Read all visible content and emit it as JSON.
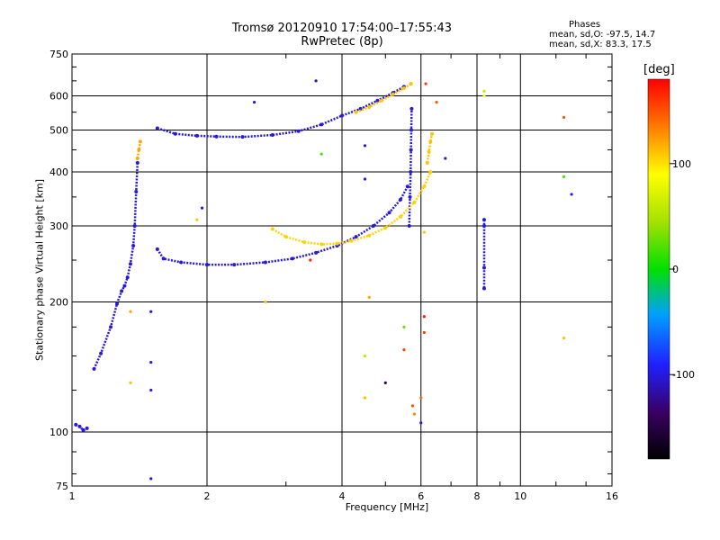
{
  "header": {
    "title_line1": "Tromsø 20120910 17:54:00–17:55:43",
    "title_line2": "RwPretec (8p)"
  },
  "phases_box": {
    "heading": "Phases",
    "line_o": "mean, sd,O: -97.5, 14.7",
    "line_x": "mean, sd,X:  83.3, 17.5"
  },
  "colorbar": {
    "unit_label": "[deg]",
    "range": [
      -180,
      180
    ],
    "ticks": [
      100,
      0,
      -100
    ],
    "tick_labels": [
      "100",
      "0",
      "-100"
    ]
  },
  "chart_data": {
    "type": "scatter",
    "title": "Tromsø 20120910 17:54:00–17:55:43",
    "subtitle": "RwPretec (8p)",
    "xlabel": "Frequency [MHz]",
    "ylabel": "Stationary phase Virtual Height [km]",
    "x_scale": "log",
    "y_scale": "log",
    "xlim": [
      1,
      16
    ],
    "ylim": [
      75,
      750
    ],
    "x_ticks": [
      1,
      2,
      4,
      6,
      8,
      10,
      16
    ],
    "x_tick_labels": [
      "1",
      "2",
      "4",
      "6",
      "8",
      "10",
      "16"
    ],
    "y_ticks": [
      75,
      100,
      200,
      300,
      400,
      500,
      600,
      750
    ],
    "y_tick_labels": [
      "75",
      "100",
      "200",
      "300",
      "400",
      "500",
      "600",
      "750"
    ],
    "grid": true,
    "color_encoding": "phase [deg]",
    "traces": [
      {
        "x": [
          1.02,
          1.04,
          1.06,
          1.08
        ],
        "y": [
          104,
          103,
          101,
          102
        ],
        "phase": -100
      },
      {
        "x": [
          1.12,
          1.16,
          1.22,
          1.26,
          1.29,
          1.31,
          1.33,
          1.35,
          1.37,
          1.38,
          1.39,
          1.4
        ],
        "y": [
          140,
          152,
          175,
          198,
          212,
          218,
          228,
          245,
          270,
          300,
          360,
          420
        ],
        "phase": -100
      },
      {
        "x": [
          1.4,
          1.41,
          1.42
        ],
        "y": [
          430,
          450,
          470
        ],
        "phase": 120
      },
      {
        "x": [
          1.55,
          1.7,
          1.9,
          2.1,
          2.4,
          2.8,
          3.2,
          3.6,
          4.0,
          4.4,
          4.8,
          5.2,
          5.5
        ],
        "y": [
          505,
          490,
          485,
          483,
          482,
          487,
          497,
          515,
          540,
          560,
          585,
          610,
          630
        ],
        "phase": -100
      },
      {
        "x": [
          4.3,
          4.6,
          4.9,
          5.2,
          5.5,
          5.7
        ],
        "y": [
          550,
          565,
          585,
          605,
          625,
          640
        ],
        "phase": 110
      },
      {
        "x": [
          5.65,
          5.67,
          5.69,
          5.7,
          5.71,
          5.72
        ],
        "y": [
          300,
          350,
          400,
          450,
          500,
          560
        ],
        "phase": -100
      },
      {
        "x": [
          1.55,
          1.6,
          1.75,
          2.0,
          2.3,
          2.7,
          3.1,
          3.5,
          3.9,
          4.3,
          4.7,
          5.1,
          5.4,
          5.6
        ],
        "y": [
          265,
          252,
          247,
          244,
          244,
          247,
          252,
          260,
          270,
          283,
          300,
          322,
          345,
          370
        ],
        "phase": -100
      },
      {
        "x": [
          2.8,
          3.0,
          3.3,
          3.6,
          3.9,
          4.2,
          4.6,
          5.0,
          5.4,
          5.8,
          6.1,
          6.3
        ],
        "y": [
          295,
          283,
          275,
          272,
          273,
          277,
          285,
          297,
          315,
          340,
          370,
          400
        ],
        "phase": 105
      },
      {
        "x": [
          6.2,
          6.25,
          6.3,
          6.35
        ],
        "y": [
          420,
          445,
          470,
          490
        ],
        "phase": 110
      },
      {
        "x": [
          8.3,
          8.3,
          8.3,
          8.3
        ],
        "y": [
          310,
          300,
          240,
          215
        ],
        "phase": -100
      }
    ],
    "scatter_points": [
      {
        "x": 1.35,
        "y": 190,
        "phase": 120
      },
      {
        "x": 1.5,
        "y": 190,
        "phase": -100
      },
      {
        "x": 1.5,
        "y": 145,
        "phase": -100
      },
      {
        "x": 1.5,
        "y": 125,
        "phase": -100
      },
      {
        "x": 1.5,
        "y": 78,
        "phase": -100
      },
      {
        "x": 1.35,
        "y": 130,
        "phase": 110
      },
      {
        "x": 1.9,
        "y": 310,
        "phase": 110
      },
      {
        "x": 1.95,
        "y": 330,
        "phase": -100
      },
      {
        "x": 2.55,
        "y": 580,
        "phase": -100
      },
      {
        "x": 3.5,
        "y": 650,
        "phase": -110
      },
      {
        "x": 3.6,
        "y": 440,
        "phase": 20
      },
      {
        "x": 3.4,
        "y": 250,
        "phase": 170
      },
      {
        "x": 2.7,
        "y": 200,
        "phase": 110
      },
      {
        "x": 4.5,
        "y": 460,
        "phase": -100
      },
      {
        "x": 4.5,
        "y": 385,
        "phase": -100
      },
      {
        "x": 4.5,
        "y": 150,
        "phase": 60
      },
      {
        "x": 4.5,
        "y": 120,
        "phase": 110
      },
      {
        "x": 4.6,
        "y": 205,
        "phase": 120
      },
      {
        "x": 5.0,
        "y": 130,
        "phase": -140
      },
      {
        "x": 5.5,
        "y": 175,
        "phase": 30
      },
      {
        "x": 5.5,
        "y": 155,
        "phase": 160
      },
      {
        "x": 5.75,
        "y": 115,
        "phase": 150
      },
      {
        "x": 5.8,
        "y": 110,
        "phase": 130
      },
      {
        "x": 6.0,
        "y": 120,
        "phase": 140
      },
      {
        "x": 6.0,
        "y": 105,
        "phase": -100
      },
      {
        "x": 6.1,
        "y": 185,
        "phase": 170
      },
      {
        "x": 6.1,
        "y": 170,
        "phase": 160
      },
      {
        "x": 6.1,
        "y": 290,
        "phase": 110
      },
      {
        "x": 6.15,
        "y": 640,
        "phase": 160
      },
      {
        "x": 6.5,
        "y": 580,
        "phase": 150
      },
      {
        "x": 6.8,
        "y": 430,
        "phase": -100
      },
      {
        "x": 8.3,
        "y": 615,
        "phase": 60
      },
      {
        "x": 8.3,
        "y": 600,
        "phase": 90
      },
      {
        "x": 12.5,
        "y": 535,
        "phase": 150
      },
      {
        "x": 12.5,
        "y": 390,
        "phase": 20
      },
      {
        "x": 12.5,
        "y": 165,
        "phase": 110
      },
      {
        "x": 13.0,
        "y": 355,
        "phase": -100
      }
    ]
  }
}
